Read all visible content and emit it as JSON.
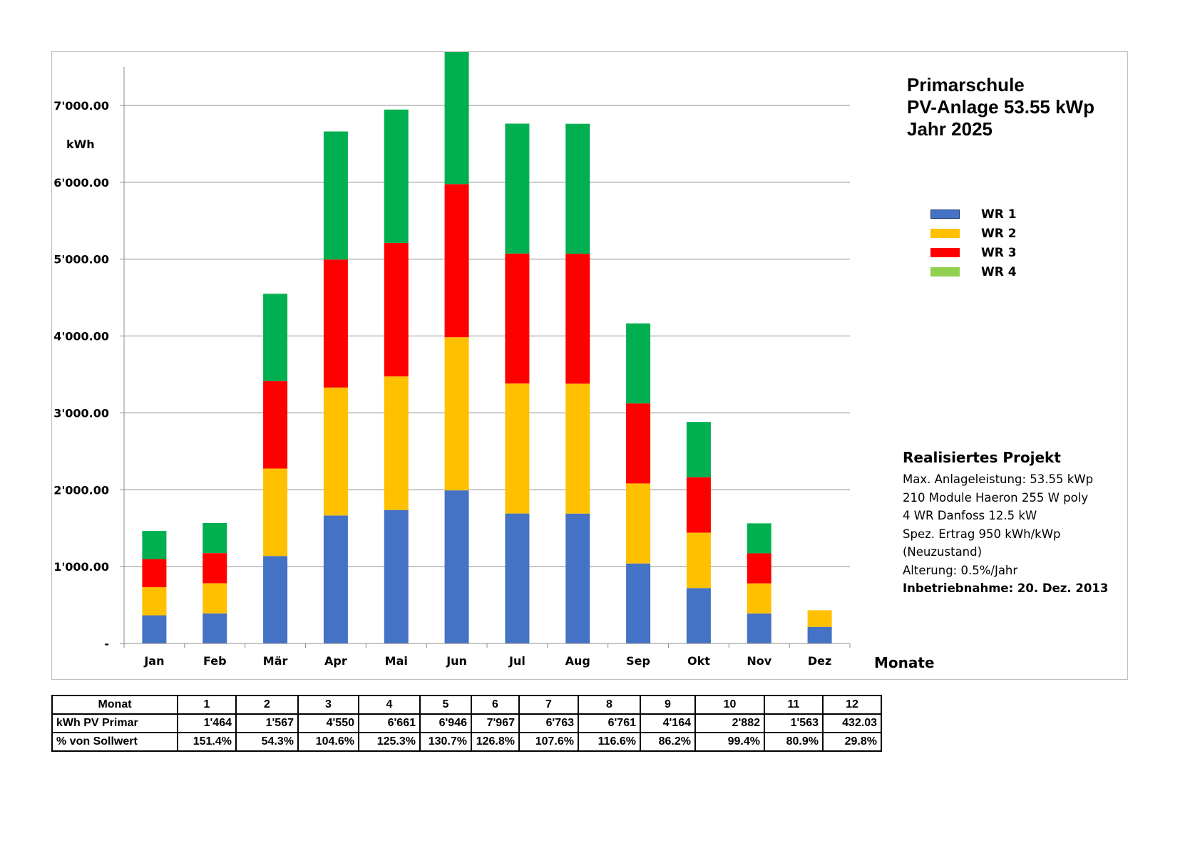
{
  "title_lines": [
    "Primarschule",
    "PV-Anlage 53.55 kWp",
    "Jahr 2025"
  ],
  "colors": {
    "wr1": "#4472C4",
    "wr2": "#FFC000",
    "wr3": "#FF0000",
    "wr4": "#92D050",
    "stack_top": "#00B050"
  },
  "chart_data": {
    "type": "bar",
    "stacked": true,
    "categories": [
      "Jan",
      "Feb",
      "Mär",
      "Apr",
      "Mai",
      "Jun",
      "Jul",
      "Aug",
      "Sep",
      "Okt",
      "Nov",
      "Dez"
    ],
    "series": [
      {
        "name": "WR 1",
        "color": "#4472C4",
        "values": [
          366,
          392,
          1138,
          1665,
          1737,
          1992,
          1691,
          1690,
          1041,
          721,
          391,
          216
        ]
      },
      {
        "name": "WR 2",
        "color": "#FFC000",
        "values": [
          366,
          392,
          1138,
          1665,
          1737,
          1992,
          1691,
          1690,
          1041,
          721,
          391,
          216
        ]
      },
      {
        "name": "WR 3",
        "color": "#FF0000",
        "values": [
          366,
          392,
          1138,
          1665,
          1737,
          1992,
          1691,
          1690,
          1041,
          721,
          391,
          0
        ]
      },
      {
        "name": "WR 4",
        "color": "#00B050",
        "values": [
          366,
          391,
          1136,
          1666,
          1735,
          1991,
          1690,
          1691,
          1041,
          719,
          390,
          0
        ]
      }
    ],
    "ylabel": "kWh",
    "xlabel": "Monate",
    "ylim": [
      0,
      7500
    ],
    "yticks": [
      0,
      1000,
      2000,
      3000,
      4000,
      5000,
      6000,
      7000
    ],
    "ytick_labels": [
      "-",
      "1'000.00",
      "2'000.00",
      "3'000.00",
      "4'000.00",
      "5'000.00",
      "6'000.00",
      "7'000.00"
    ],
    "grid": true,
    "legend_position": "right"
  },
  "project": {
    "heading": "Realisiertes Projekt",
    "lines": [
      "Max. Anlageleistung: 53.55 kWp",
      "210 Module Haeron 255 W poly",
      "4 WR Danfoss 12.5 kW",
      "Spez. Ertrag 950 kWh/kWp",
      "(Neuzustand)",
      "Alterung: 0.5%/Jahr"
    ],
    "commissioning": "Inbetriebnahme:  20. Dez. 2013"
  },
  "table": {
    "header_label": "Monat",
    "months": [
      "1",
      "2",
      "3",
      "4",
      "5",
      "6",
      "7",
      "8",
      "9",
      "10",
      "11",
      "12"
    ],
    "rows": [
      {
        "label": "kWh PV Primar",
        "values": [
          "1'464",
          "1'567",
          "4'550",
          "6'661",
          "6'946",
          "7'967",
          "6'763",
          "6'761",
          "4'164",
          "2'882",
          "1'563",
          "432.03"
        ]
      },
      {
        "label": "% von Sollwert",
        "values": [
          "151.4%",
          "54.3%",
          "104.6%",
          "125.3%",
          "130.7%",
          "126.8%",
          "107.6%",
          "116.6%",
          "86.2%",
          "99.4%",
          "80.9%",
          "29.8%"
        ]
      }
    ]
  }
}
